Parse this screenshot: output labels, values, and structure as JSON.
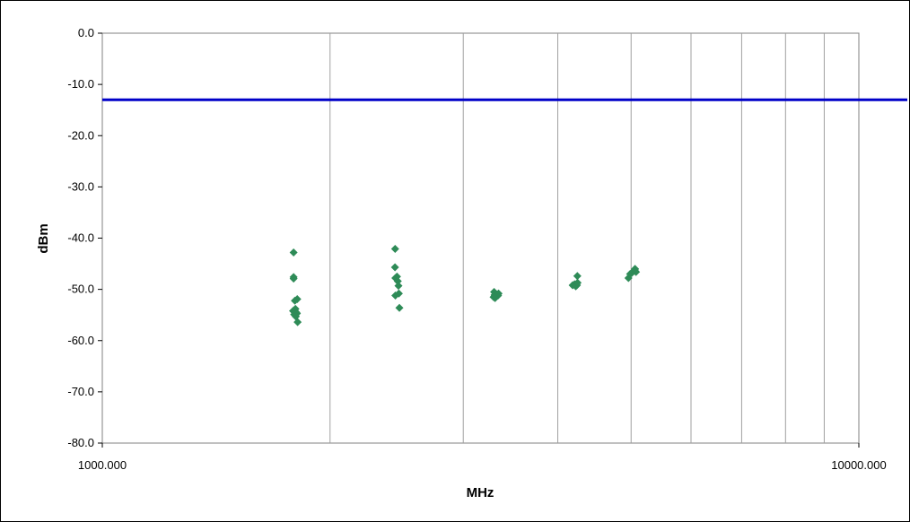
{
  "chart_data": {
    "type": "scatter",
    "xlabel": "MHz",
    "ylabel": "dBm",
    "x_scale": "log",
    "xlim": [
      1000,
      10000
    ],
    "ylim": [
      -80,
      0
    ],
    "x_tick_labels": [
      "1000.000",
      "10000.000"
    ],
    "y_tick_labels": [
      "0.0",
      "-10.0",
      "-20.0",
      "-30.0",
      "-40.0",
      "-50.0",
      "-60.0",
      "-70.0",
      "-80.0"
    ],
    "grid": true,
    "legend": "none",
    "limit_line": {
      "value": -13,
      "color": "#0000c8"
    },
    "series": [
      {
        "color": "#2e8b57",
        "marker": "diamond",
        "points": [
          [
            1790,
            -42.8
          ],
          [
            1790,
            -47.6
          ],
          [
            1790,
            -47.9
          ],
          [
            1797,
            -52.2
          ],
          [
            1810,
            -51.9
          ],
          [
            1787,
            -54.2
          ],
          [
            1795,
            -54.0
          ],
          [
            1800,
            -53.8
          ],
          [
            1805,
            -54.5
          ],
          [
            1793,
            -54.9
          ],
          [
            1802,
            -55.3
          ],
          [
            1808,
            -54.7
          ],
          [
            1812,
            -56.4
          ],
          [
            1799,
            -55.0
          ],
          [
            2438,
            -42.1
          ],
          [
            2437,
            -45.7
          ],
          [
            2440,
            -47.8
          ],
          [
            2452,
            -47.5
          ],
          [
            2458,
            -48.4
          ],
          [
            2463,
            -49.3
          ],
          [
            2466,
            -50.8
          ],
          [
            2440,
            -51.2
          ],
          [
            2470,
            -53.6
          ],
          [
            3295,
            -50.5
          ],
          [
            3300,
            -51.1
          ],
          [
            3310,
            -51.4
          ],
          [
            3315,
            -50.9
          ],
          [
            3325,
            -51.0
          ],
          [
            3335,
            -51.2
          ],
          [
            3340,
            -50.8
          ],
          [
            3290,
            -51.5
          ],
          [
            3305,
            -51.7
          ],
          [
            4185,
            -49.2
          ],
          [
            4210,
            -49.0
          ],
          [
            4225,
            -49.4
          ],
          [
            4240,
            -49.2
          ],
          [
            4248,
            -48.7
          ],
          [
            4245,
            -47.4
          ],
          [
            4960,
            -47.8
          ],
          [
            4985,
            -47.0
          ],
          [
            5010,
            -46.8
          ],
          [
            5035,
            -46.5
          ],
          [
            5055,
            -46.2
          ],
          [
            5075,
            -46.6
          ],
          [
            5060,
            -46.0
          ]
        ]
      }
    ]
  }
}
